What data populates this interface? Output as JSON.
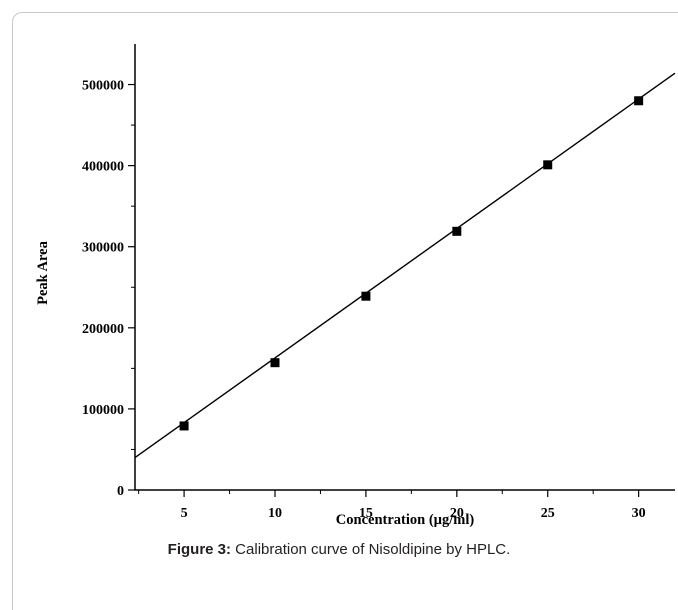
{
  "chart_data": {
    "type": "scatter",
    "xlabel": "Concentration (µg/ml)",
    "ylabel": "Peak Area",
    "xlim": [
      2.3,
      32
    ],
    "ylim": [
      0,
      550000
    ],
    "x_ticks": [
      5,
      10,
      15,
      20,
      25,
      30
    ],
    "y_ticks": [
      0,
      100000,
      200000,
      300000,
      400000,
      500000
    ],
    "x_tick_labels": [
      "5",
      "10",
      "15",
      "20",
      "25",
      "30"
    ],
    "y_tick_labels": [
      "0",
      "100000",
      "200000",
      "300000",
      "400000",
      "500000"
    ],
    "series": [
      {
        "x": [
          5,
          10,
          15,
          20,
          25,
          30
        ],
        "y": [
          79000,
          157000,
          239000,
          319000,
          401000,
          480000
        ],
        "marker": "square",
        "color": "#000000"
      }
    ],
    "fit_line": {
      "x_range": [
        2.3,
        32
      ],
      "y_range": [
        40000,
        514000
      ],
      "color": "#000000"
    },
    "grid": false,
    "legend": "none"
  },
  "caption": {
    "label": "Figure 3:",
    "text": " Calibration curve of Nisoldipine by HPLC."
  }
}
